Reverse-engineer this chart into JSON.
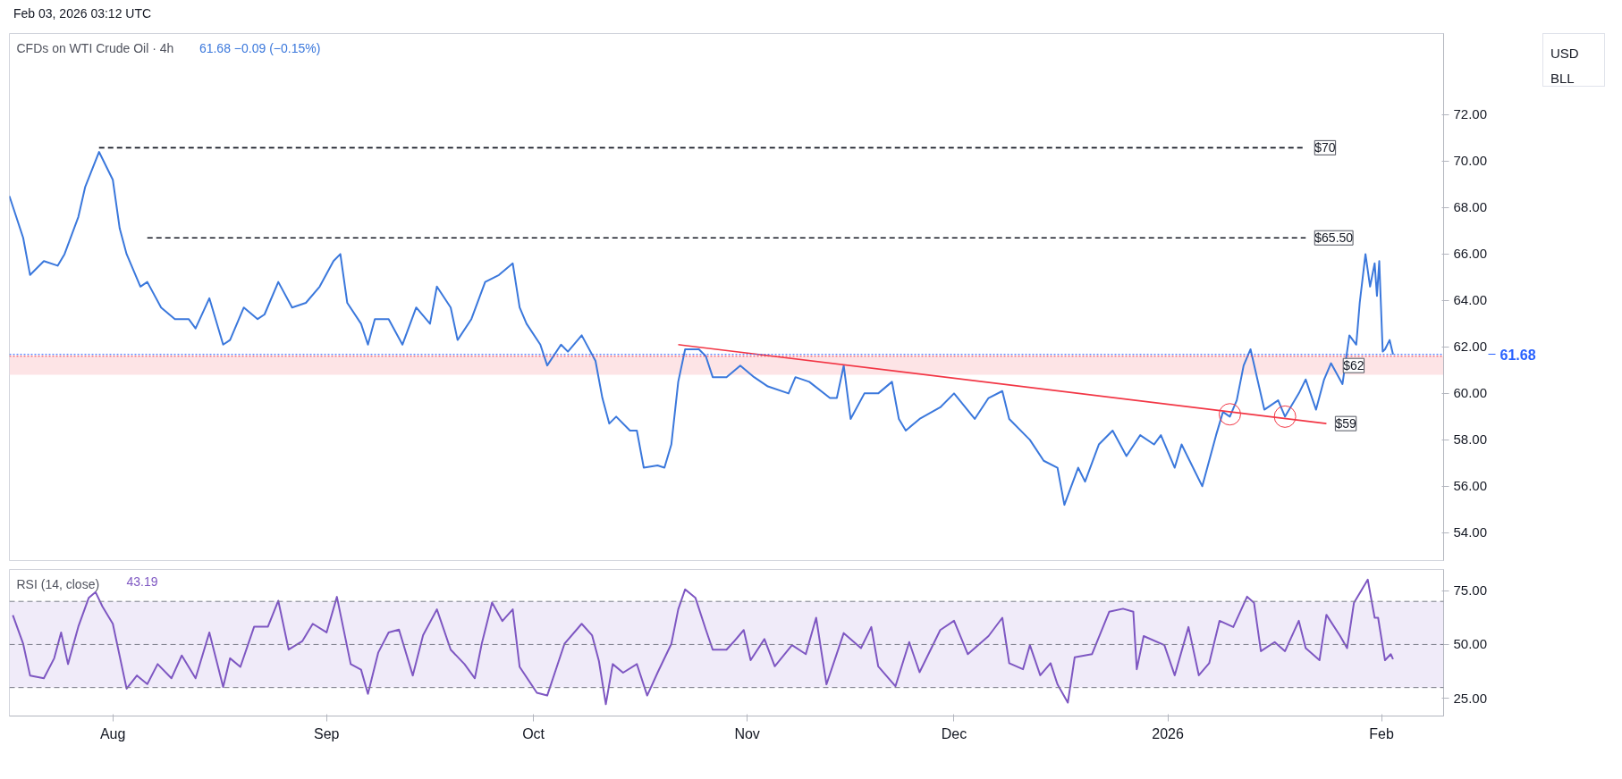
{
  "chart_data": [
    {
      "type": "line",
      "title": "CFDs on WTI Crude Oil · 4h",
      "subtitle": "61.68  −0.09 (−0.15%)",
      "ylabel": "USD\nBLL",
      "annotations": [
        "Feb 03, 2026 03:12 UTC"
      ],
      "x": [
        "2025-07-17",
        "2025-07-19",
        "2025-07-20",
        "2025-07-22",
        "2025-07-24",
        "2025-07-25",
        "2025-07-27",
        "2025-07-28",
        "2025-07-30",
        "2025-08-01",
        "2025-08-02",
        "2025-08-03",
        "2025-08-05",
        "2025-08-06",
        "2025-08-08",
        "2025-08-10",
        "2025-08-12",
        "2025-08-13",
        "2025-08-15",
        "2025-08-17",
        "2025-08-18",
        "2025-08-20",
        "2025-08-22",
        "2025-08-23",
        "2025-08-25",
        "2025-08-27",
        "2025-08-29",
        "2025-08-31",
        "2025-09-02",
        "2025-09-03",
        "2025-09-04",
        "2025-09-06",
        "2025-09-07",
        "2025-09-08",
        "2025-09-10",
        "2025-09-12",
        "2025-09-14",
        "2025-09-16",
        "2025-09-17",
        "2025-09-19",
        "2025-09-20",
        "2025-09-22",
        "2025-09-24",
        "2025-09-26",
        "2025-09-28",
        "2025-09-29",
        "2025-09-30",
        "2025-10-02",
        "2025-10-03",
        "2025-10-05",
        "2025-10-06",
        "2025-10-08",
        "2025-10-10",
        "2025-10-11",
        "2025-10-12",
        "2025-10-13",
        "2025-10-15",
        "2025-10-16",
        "2025-10-17",
        "2025-10-19",
        "2025-10-20",
        "2025-10-21",
        "2025-10-22",
        "2025-10-23",
        "2025-10-25",
        "2025-10-26",
        "2025-10-27",
        "2025-10-29",
        "2025-10-31",
        "2025-11-02",
        "2025-11-04",
        "2025-11-07",
        "2025-11-08",
        "2025-11-10",
        "2025-11-13",
        "2025-11-14",
        "2025-11-15",
        "2025-11-16",
        "2025-11-18",
        "2025-11-20",
        "2025-11-22",
        "2025-11-23",
        "2025-11-24",
        "2025-11-26",
        "2025-11-29",
        "2025-12-01",
        "2025-12-04",
        "2025-12-06",
        "2025-12-08",
        "2025-12-09",
        "2025-12-12",
        "2025-12-14",
        "2025-12-16",
        "2025-12-17",
        "2025-12-19",
        "2025-12-20",
        "2025-12-22",
        "2025-12-24",
        "2025-12-26",
        "2025-12-28",
        "2025-12-30",
        "2025-12-31",
        "2026-01-02",
        "2026-01-03",
        "2026-01-05",
        "2026-01-06",
        "2026-01-08",
        "2026-01-09",
        "2026-01-10",
        "2026-01-11",
        "2026-01-12",
        "2026-01-13",
        "2026-01-14",
        "2026-01-15",
        "2026-01-17",
        "2026-01-18",
        "2026-01-20",
        "2026-01-21",
        "2026-01-22T12:00",
        "2026-01-23T16:00",
        "2026-01-24T16:00",
        "2026-01-26T08:00",
        "2026-01-27T08:00",
        "2026-01-28T08:00",
        "2026-01-28T20:00",
        "2026-01-29T16:00",
        "2026-01-30T08:00",
        "2026-01-31T00:00",
        "2026-01-31T08:00",
        "2026-01-31T16:00",
        "2026-02-01T04:00",
        "2026-02-01T12:00",
        "2026-02-02T04:00",
        "2026-02-02T16:00"
      ],
      "series": [
        {
          "color": "#3b78dc",
          "values": [
            68.5,
            66.7,
            65.1,
            65.7,
            65.5,
            66.0,
            67.6,
            68.9,
            70.4,
            69.2,
            67.1,
            66.0,
            64.6,
            64.8,
            63.7,
            63.2,
            63.2,
            62.8,
            64.1,
            62.1,
            62.3,
            63.7,
            63.2,
            63.4,
            64.8,
            63.7,
            63.9,
            64.6,
            65.7,
            66.0,
            63.9,
            63.0,
            62.1,
            63.2,
            63.2,
            62.1,
            63.7,
            63.0,
            64.6,
            63.7,
            62.3,
            63.2,
            64.8,
            65.1,
            65.6,
            63.7,
            63.0,
            62.1,
            61.2,
            62.1,
            61.8,
            62.5,
            61.4,
            59.8,
            58.7,
            59.0,
            58.4,
            58.4,
            56.8,
            56.9,
            56.8,
            57.8,
            60.5,
            61.9,
            61.9,
            61.6,
            60.7,
            60.7,
            61.2,
            60.7,
            60.3,
            60.0,
            60.7,
            60.5,
            59.8,
            59.8,
            61.2,
            58.9,
            60.0,
            60.0,
            60.5,
            58.9,
            58.4,
            58.9,
            59.4,
            60.0,
            58.9,
            59.8,
            60.1,
            58.9,
            58.0,
            57.1,
            56.8,
            55.2,
            56.8,
            56.2,
            57.8,
            58.4,
            57.3,
            58.2,
            57.8,
            58.2,
            56.8,
            57.8,
            56.6,
            56.0,
            58.2,
            59.2,
            59.0,
            59.7,
            61.2,
            61.9,
            60.6,
            59.3,
            59.7,
            59.0,
            60.0,
            60.6,
            59.3,
            60.6,
            61.3,
            60.4,
            62.5,
            62.1,
            63.9,
            66.0,
            64.6,
            65.6,
            64.2,
            65.7,
            61.8,
            61.9,
            62.3,
            61.68
          ]
        },
        {
          "name": "$70",
          "color": "#131722",
          "line_style": "dashed",
          "x": [
            "2025-07-30",
            "2026-01-21"
          ],
          "values": [
            70.58,
            70.58
          ]
        },
        {
          "name": "$65.50",
          "color": "#131722",
          "line_style": "dashed",
          "x": [
            "2025-08-06",
            "2026-01-21"
          ],
          "values": [
            66.7,
            66.7
          ]
        },
        {
          "name": "$59",
          "color": "#f23645",
          "line_style": "solid",
          "x": [
            "2025-10-22",
            "2026-01-24"
          ],
          "values": [
            62.1,
            58.7
          ]
        },
        {
          "type": "scatter",
          "marker": "circle",
          "color": "#f23645",
          "x": [
            "2026-01-10",
            "2026-01-18"
          ],
          "values": [
            59.1,
            59.0
          ]
        }
      ],
      "ref_lines": [
        {
          "axis": "y",
          "value": 61.68,
          "label": "61.68",
          "color": "#2962ff",
          "line_style": "dotted"
        },
        {
          "axis": "y",
          "value": 61.6,
          "color": "#f23645",
          "line_style": "dotted"
        }
      ],
      "bands": [
        {
          "axis": "y",
          "from": 60.8,
          "to": 61.6,
          "label": "$62",
          "color": "#fde4e6"
        }
      ],
      "xlim": [
        "2025-07-17",
        "2026-02-10"
      ],
      "ylim": [
        52.8,
        75.5
      ],
      "yticks": [
        {
          "value": 54,
          "label": "54.00"
        },
        {
          "value": 56,
          "label": "56.00"
        },
        {
          "value": 58,
          "label": "58.00"
        },
        {
          "value": 60,
          "label": "60.00"
        },
        {
          "value": 62,
          "label": "62.00"
        },
        {
          "value": 64,
          "label": "64.00"
        },
        {
          "value": 66,
          "label": "66.00"
        },
        {
          "value": 68,
          "label": "68.00"
        },
        {
          "value": 70,
          "label": "70.00"
        },
        {
          "value": 72,
          "label": "72.00"
        }
      ],
      "tick_labels": "y"
    },
    {
      "type": "line",
      "title": "RSI (14, close)",
      "subtitle": "43.19",
      "x": [
        "2025-07-17T12:00",
        "2025-07-19",
        "2025-07-20",
        "2025-07-22",
        "2025-07-23T12:00",
        "2025-07-24T12:00",
        "2025-07-25T12:00",
        "2025-07-27",
        "2025-07-28T12:00",
        "2025-07-29T12:00",
        "2025-07-30T12:00",
        "2025-08-01",
        "2025-08-03",
        "2025-08-04T12:00",
        "2025-08-06",
        "2025-08-07T12:00",
        "2025-08-09T12:00",
        "2025-08-11",
        "2025-08-13",
        "2025-08-15",
        "2025-08-17",
        "2025-08-18",
        "2025-08-19T12:00",
        "2025-08-21T12:00",
        "2025-08-23T12:00",
        "2025-08-25",
        "2025-08-26T12:00",
        "2025-08-28T12:00",
        "2025-08-30",
        "2025-09-01",
        "2025-09-02T12:00",
        "2025-09-04T12:00",
        "2025-09-06",
        "2025-09-07",
        "2025-09-08T12:00",
        "2025-09-10",
        "2025-09-11T12:00",
        "2025-09-13T12:00",
        "2025-09-15",
        "2025-09-17",
        "2025-09-19",
        "2025-09-21",
        "2025-09-22T12:00",
        "2025-09-23T12:00",
        "2025-09-25",
        "2025-09-26T12:00",
        "2025-09-28",
        "2025-09-29",
        "2025-10-01T12:00",
        "2025-10-03",
        "2025-10-05T12:00",
        "2025-10-08",
        "2025-10-09T12:00",
        "2025-10-10T12:00",
        "2025-10-11T12:00",
        "2025-10-12T12:00",
        "2025-10-14",
        "2025-10-16",
        "2025-10-17T12:00",
        "2025-10-19",
        "2025-10-21",
        "2025-10-22",
        "2025-10-23",
        "2025-10-24T12:00",
        "2025-10-26",
        "2025-10-27",
        "2025-10-29",
        "2025-10-30",
        "2025-10-31T12:00",
        "2025-11-01T12:00",
        "2025-11-03T12:00",
        "2025-11-05",
        "2025-11-07T12:00",
        "2025-11-09T12:00",
        "2025-11-11",
        "2025-11-12T12:00",
        "2025-11-15",
        "2025-11-17T12:00",
        "2025-11-19",
        "2025-11-20",
        "2025-11-22T12:00",
        "2025-11-24T12:00",
        "2025-11-26",
        "2025-11-29",
        "2025-12-01",
        "2025-12-03",
        "2025-12-06",
        "2025-12-08",
        "2025-12-09",
        "2025-12-11",
        "2025-12-12",
        "2025-12-13T12:00",
        "2025-12-15",
        "2025-12-16",
        "2025-12-17T12:00",
        "2025-12-18T12:00",
        "2025-12-21",
        "2025-12-23T12:00",
        "2025-12-25T12:00",
        "2025-12-27",
        "2025-12-27T12:00",
        "2025-12-28T12:00",
        "2025-12-31T12:00",
        "2026-01-02",
        "2026-01-04",
        "2026-01-05T12:00",
        "2026-01-07",
        "2026-01-08T12:00",
        "2026-01-10T12:00",
        "2026-01-12T12:00",
        "2026-01-13T12:00",
        "2026-01-14T12:00",
        "2026-01-16T12:00",
        "2026-01-18",
        "2026-01-20",
        "2026-01-21",
        "2026-01-23",
        "2026-01-24",
        "2026-01-26",
        "2026-01-27",
        "2026-01-28",
        "2026-01-30",
        "2026-01-31",
        "2026-01-31T12:00",
        "2026-02-01T12:00",
        "2026-02-02T08:00",
        "2026-02-02T16:00"
      ],
      "series": [
        {
          "color": "#7e57c2",
          "values": [
            63.6,
            50.3,
            35.6,
            34.3,
            43.6,
            55.6,
            40.9,
            58.3,
            71.6,
            74.3,
            67.6,
            59.6,
            29.5,
            35.6,
            31.6,
            40.9,
            34.3,
            44.9,
            34.3,
            55.6,
            30.3,
            43.6,
            39.6,
            58.3,
            58.3,
            70.3,
            47.6,
            51.6,
            59.6,
            55.6,
            72.1,
            40.9,
            38.3,
            27.1,
            46.3,
            55.6,
            56.9,
            35.6,
            54.3,
            66.3,
            47.6,
            40.9,
            34.3,
            50.3,
            69.5,
            60.9,
            66.3,
            39.6,
            27.6,
            26.3,
            50.3,
            59.6,
            54.3,
            42.3,
            22.3,
            40.9,
            36.9,
            40.9,
            26.3,
            36.9,
            50.3,
            66.3,
            75.6,
            71.6,
            56.9,
            47.6,
            47.6,
            51.1,
            56.7,
            42.7,
            52.5,
            39.9,
            49.7,
            45.5,
            62.4,
            31.5,
            55.3,
            48.3,
            58.1,
            39.9,
            30.6,
            51.1,
            37.1,
            56.7,
            61.0,
            45.5,
            53.9,
            62.4,
            41.3,
            38.5,
            49.7,
            35.7,
            41.3,
            31.5,
            23.0,
            44.1,
            45.5,
            65.2,
            66.6,
            65.2,
            38.5,
            53.9,
            49.7,
            35.7,
            58.1,
            35.7,
            41.3,
            61.0,
            58.1,
            72.2,
            69.4,
            46.9,
            51.1,
            46.9,
            61.0,
            48.3,
            42.7,
            63.8,
            53.9,
            48.3,
            69.4,
            80.1,
            62.4,
            62.4,
            42.7,
            45.5,
            43.2
          ]
        }
      ],
      "ref_lines": [
        {
          "axis": "y",
          "value": 70,
          "color": "#787b86",
          "line_style": "dashed"
        },
        {
          "axis": "y",
          "value": 50,
          "color": "#787b86",
          "line_style": "dashed"
        },
        {
          "axis": "y",
          "value": 30,
          "color": "#787b86",
          "line_style": "dashed"
        }
      ],
      "bands": [
        {
          "axis": "y",
          "from": 30,
          "to": 70,
          "color": "#f0ebf9"
        }
      ],
      "xlim": [
        "2025-07-17",
        "2026-02-10"
      ],
      "ylim": [
        16.8,
        84.8
      ],
      "xticks": [
        {
          "value": "2025-08-01",
          "label": "Aug"
        },
        {
          "value": "2025-09-01",
          "label": "Sep"
        },
        {
          "value": "2025-10-01",
          "label": "Oct"
        },
        {
          "value": "2025-11-01",
          "label": "Nov"
        },
        {
          "value": "2025-12-01",
          "label": "Dec"
        },
        {
          "value": "2026-01-01",
          "label": "2026"
        },
        {
          "value": "2026-02-01",
          "label": "Feb"
        }
      ],
      "yticks": [
        {
          "value": 25,
          "label": "25.00"
        },
        {
          "value": 50,
          "label": "50.00"
        },
        {
          "value": 75,
          "label": "75.00"
        }
      ]
    }
  ]
}
